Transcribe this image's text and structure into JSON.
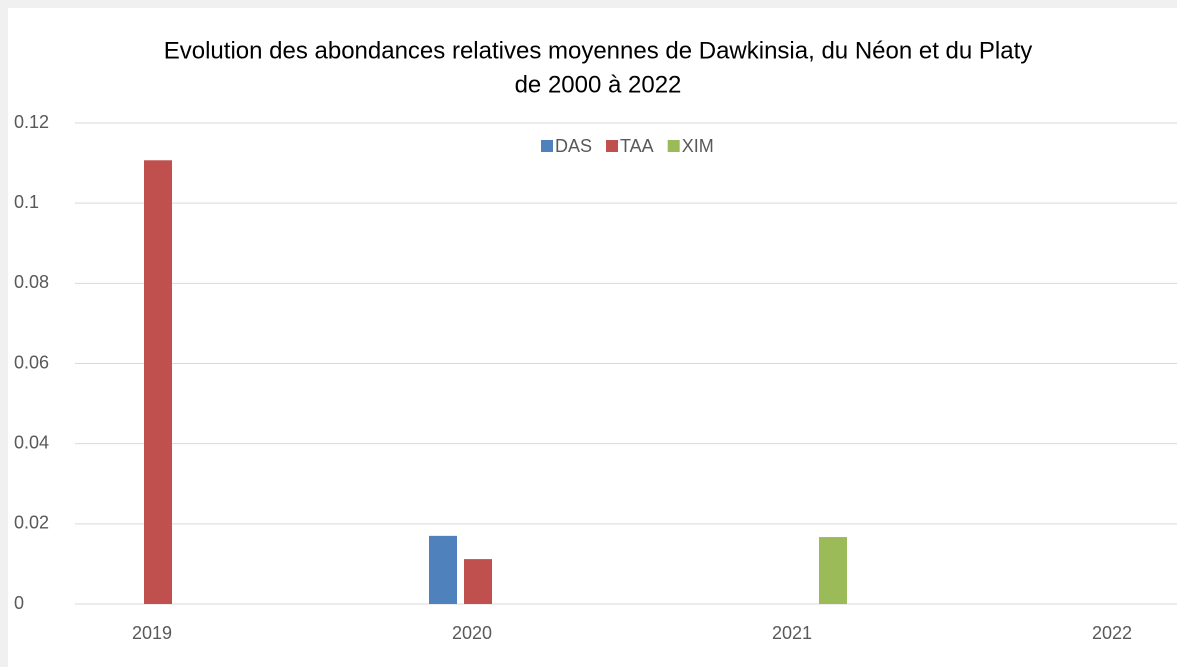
{
  "chart_data": {
    "type": "bar",
    "title": [
      "Evolution des abondances relatives moyennes de Dawkinsia, du Néon et du Platy",
      "de 2000 à 2022"
    ],
    "categories": [
      "2019",
      "2020",
      "2021",
      "2022"
    ],
    "series": [
      {
        "name": "DAS",
        "color": "#4f81bd",
        "values": [
          null,
          0.017,
          null,
          null
        ]
      },
      {
        "name": "TAA",
        "color": "#c0504d",
        "values": [
          0.1107,
          0.0112,
          null,
          null
        ]
      },
      {
        "name": "XIM",
        "color": "#9bbb59",
        "values": [
          null,
          null,
          0.0167,
          null
        ]
      }
    ],
    "ylim": [
      0,
      0.12
    ],
    "yticks": [
      0,
      0.02,
      0.04,
      0.06,
      0.08,
      0.1,
      0.12
    ],
    "grid": true,
    "legend": "top"
  }
}
